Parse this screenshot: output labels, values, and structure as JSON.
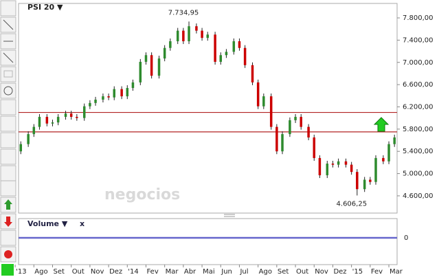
{
  "chart_data": {
    "type": "candlestick",
    "title": "PSI 20 ▼",
    "watermark": "negocios",
    "up_color": "#2e8b2e",
    "down_color": "#cc0000",
    "wick_color": "#222222",
    "x": [
      0.3,
      0.7,
      1,
      1.3,
      1.7,
      2,
      2.3,
      2.7,
      3,
      3.3,
      3.7,
      4,
      4.3,
      4.7,
      5,
      5.3,
      5.7,
      6,
      6.3,
      6.7,
      7,
      7.3,
      7.7,
      8,
      8.3,
      8.7,
      9,
      9.3,
      9.7,
      10,
      10.3,
      10.7,
      11,
      11.3,
      11.7,
      12,
      12.3,
      12.7,
      13,
      13.3,
      13.7,
      14,
      14.3,
      14.7,
      15,
      15.3,
      15.7,
      16,
      16.3,
      16.7,
      17,
      17.3,
      17.7,
      18,
      18.3,
      18.7,
      19,
      19.3,
      19.7,
      20,
      20.3
    ],
    "open": [
      5400,
      5530,
      5710,
      5840,
      6020,
      5900,
      5920,
      6020,
      6080,
      6020,
      6000,
      6210,
      6270,
      6330,
      6390,
      6370,
      6520,
      6390,
      6540,
      6640,
      7010,
      7130,
      6760,
      7070,
      7260,
      7380,
      7570,
      7380,
      7650,
      7570,
      7440,
      7500,
      7010,
      7130,
      7190,
      7380,
      7260,
      6950,
      6640,
      6210,
      6390,
      5840,
      5400,
      5710,
      5960,
      6020,
      5840,
      5650,
      5280,
      4970,
      5180,
      5160,
      5220,
      5160,
      5030,
      4720,
      4890,
      4850,
      5280,
      5220,
      5530
    ],
    "high": [
      5580,
      5760,
      5890,
      6070,
      6070,
      5970,
      6070,
      6130,
      6130,
      6070,
      6260,
      6320,
      6380,
      6440,
      6440,
      6570,
      6570,
      6590,
      6690,
      7060,
      7180,
      7180,
      7120,
      7310,
      7430,
      7620,
      7620,
      7734.95,
      7700,
      7620,
      7550,
      7550,
      7180,
      7240,
      7430,
      7430,
      7310,
      7000,
      6690,
      6440,
      6440,
      5890,
      5760,
      6010,
      6070,
      6070,
      5890,
      5700,
      5330,
      5230,
      5230,
      5270,
      5270,
      5210,
      5080,
      4940,
      4940,
      5330,
      5330,
      5580,
      5700
    ],
    "low": [
      5350,
      5480,
      5660,
      5790,
      5850,
      5850,
      5870,
      5970,
      5970,
      5950,
      5950,
      6160,
      6220,
      6280,
      6320,
      6320,
      6340,
      6340,
      6490,
      6590,
      6960,
      6710,
      6710,
      7020,
      7210,
      7330,
      7330,
      7330,
      7520,
      7390,
      7390,
      6960,
      6960,
      7080,
      7140,
      7210,
      6900,
      6590,
      6160,
      6160,
      5790,
      5350,
      5350,
      5660,
      5910,
      5790,
      5600,
      5230,
      4920,
      4920,
      5110,
      5110,
      5110,
      4980,
      4606.25,
      4670,
      4800,
      4800,
      5170,
      5170,
      5480
    ],
    "close": [
      5530,
      5710,
      5840,
      6020,
      5900,
      5920,
      6020,
      6080,
      6020,
      6000,
      6210,
      6270,
      6330,
      6390,
      6370,
      6520,
      6390,
      6540,
      6640,
      7010,
      7130,
      6760,
      7070,
      7260,
      7380,
      7570,
      7380,
      7650,
      7570,
      7440,
      7500,
      7010,
      7130,
      7190,
      7380,
      7260,
      6950,
      6640,
      6210,
      6390,
      5840,
      5400,
      5710,
      5960,
      6020,
      5840,
      5650,
      5280,
      4970,
      5180,
      5160,
      5220,
      5160,
      5030,
      4720,
      4890,
      4850,
      5280,
      5220,
      5530,
      5650
    ],
    "xlim": [
      0.18,
      20.44
    ],
    "xticks": [
      {
        "value": 0,
        "label": "'13"
      },
      {
        "value": 1,
        "label": "Ago"
      },
      {
        "value": 2,
        "label": "Set"
      },
      {
        "value": 3,
        "label": "Out"
      },
      {
        "value": 4,
        "label": "Nov"
      },
      {
        "value": 5,
        "label": "Dez"
      },
      {
        "value": 6,
        "label": "'14"
      },
      {
        "value": 7,
        "label": "Fev"
      },
      {
        "value": 8,
        "label": "Mar"
      },
      {
        "value": 9,
        "label": "Abr"
      },
      {
        "value": 10,
        "label": "Mai"
      },
      {
        "value": 11,
        "label": "Jun"
      },
      {
        "value": 12,
        "label": "Jul"
      },
      {
        "value": 13,
        "label": "Ago"
      },
      {
        "value": 14,
        "label": "Set"
      },
      {
        "value": 15,
        "label": "Out"
      },
      {
        "value": 16,
        "label": "Nov"
      },
      {
        "value": 17,
        "label": "Dez"
      },
      {
        "value": 18,
        "label": "'15"
      },
      {
        "value": 19,
        "label": "Fev"
      },
      {
        "value": 20,
        "label": "Mar"
      }
    ],
    "ylim": [
      4290,
      8060
    ],
    "yticks": [
      {
        "value": 4600,
        "label": "4.600,00"
      },
      {
        "value": 5000,
        "label": "5.000,00"
      },
      {
        "value": 5400,
        "label": "5.400,00"
      },
      {
        "value": 5800,
        "label": "5.800,00"
      },
      {
        "value": 6200,
        "label": "6.200,00"
      },
      {
        "value": 6600,
        "label": "6.600,00"
      },
      {
        "value": 7000,
        "label": "7.000,00"
      },
      {
        "value": 7400,
        "label": "7.400,00"
      },
      {
        "value": 7800,
        "label": "7.800,00"
      }
    ],
    "hlines": [
      6100,
      5750
    ],
    "hline_color": "#b22222",
    "annotations": [
      {
        "value": 7734.95,
        "label": "7.734,95"
      },
      {
        "value": 4606.25,
        "label": "4.606,25"
      }
    ]
  },
  "volume_panel": {
    "title": "Volume ▼",
    "close": "x",
    "yticks": [
      0
    ],
    "color": "#6666cc"
  }
}
